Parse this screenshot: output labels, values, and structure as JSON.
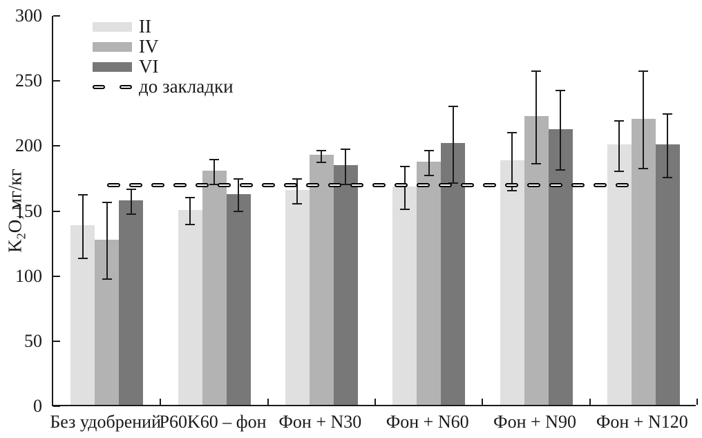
{
  "chart_data": {
    "type": "bar",
    "title": "",
    "xlabel": "",
    "ylabel": "K2O, мг/кг",
    "ylabel_parts": {
      "base": "K",
      "sub": "2",
      "rest": "O, мг/кг"
    },
    "ylim": [
      0,
      300
    ],
    "yticks": [
      0,
      50,
      100,
      150,
      200,
      250,
      300
    ],
    "grid": false,
    "legend_position": "top-left",
    "categories": [
      "Без удобрений",
      "P60K60 – фон",
      "Фон + N30",
      "Фон + N60",
      "Фон + N90",
      "Фон + N120"
    ],
    "series": [
      {
        "name": "II",
        "color": "#e0e0e0",
        "values": [
          138,
          150,
          165,
          168,
          188,
          200
        ],
        "errors": [
          25,
          11,
          10,
          17,
          23,
          20
        ]
      },
      {
        "name": "IV",
        "color": "#b3b3b3",
        "values": [
          127,
          180,
          192,
          187,
          222,
          220
        ],
        "errors": [
          30,
          10,
          5,
          10,
          36,
          38
        ]
      },
      {
        "name": "VI",
        "color": "#787878",
        "values": [
          157,
          162,
          184,
          201,
          212,
          200
        ],
        "errors": [
          10,
          13,
          14,
          30,
          31,
          25
        ]
      }
    ],
    "reference_line": {
      "label": "до закладки",
      "value": 170,
      "style": "dashed",
      "color": "#000000",
      "spans": "from first category center to last category center"
    }
  }
}
